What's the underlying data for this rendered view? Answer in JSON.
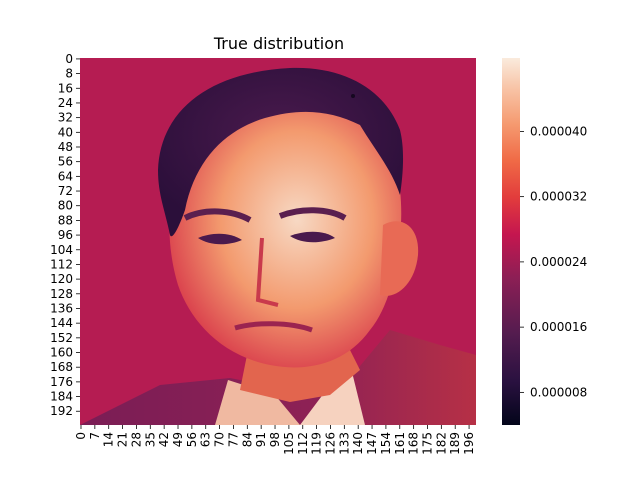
{
  "chart_data": {
    "type": "heatmap",
    "title": "True distribution",
    "xlabel": "",
    "ylabel": "",
    "rows": 200,
    "cols": 200,
    "y_tick_labels": [
      "0",
      "8",
      "16",
      "24",
      "32",
      "40",
      "48",
      "56",
      "64",
      "72",
      "80",
      "88",
      "96",
      "104",
      "112",
      "120",
      "128",
      "136",
      "144",
      "152",
      "160",
      "168",
      "176",
      "184",
      "192"
    ],
    "x_tick_labels": [
      "0",
      "7",
      "14",
      "21",
      "28",
      "35",
      "42",
      "49",
      "56",
      "63",
      "70",
      "77",
      "84",
      "91",
      "98",
      "105",
      "112",
      "119",
      "126",
      "133",
      "140",
      "147",
      "154",
      "161",
      "168",
      "175",
      "182",
      "189",
      "196"
    ],
    "colorbar": {
      "colormap": "rocket",
      "vmin": 4e-06,
      "vmax": 4.9e-05,
      "tick_values": [
        8e-06,
        1.6e-05,
        2.4e-05,
        3.2e-05,
        4e-05
      ],
      "tick_labels": [
        "0.000008",
        "0.000016",
        "0.000024",
        "0.000032",
        "0.000040"
      ]
    },
    "description_of_values": "Portrait-shaped probability density over a 200x200 grid; values roughly 0.000005 to 0.000048 per cell"
  }
}
